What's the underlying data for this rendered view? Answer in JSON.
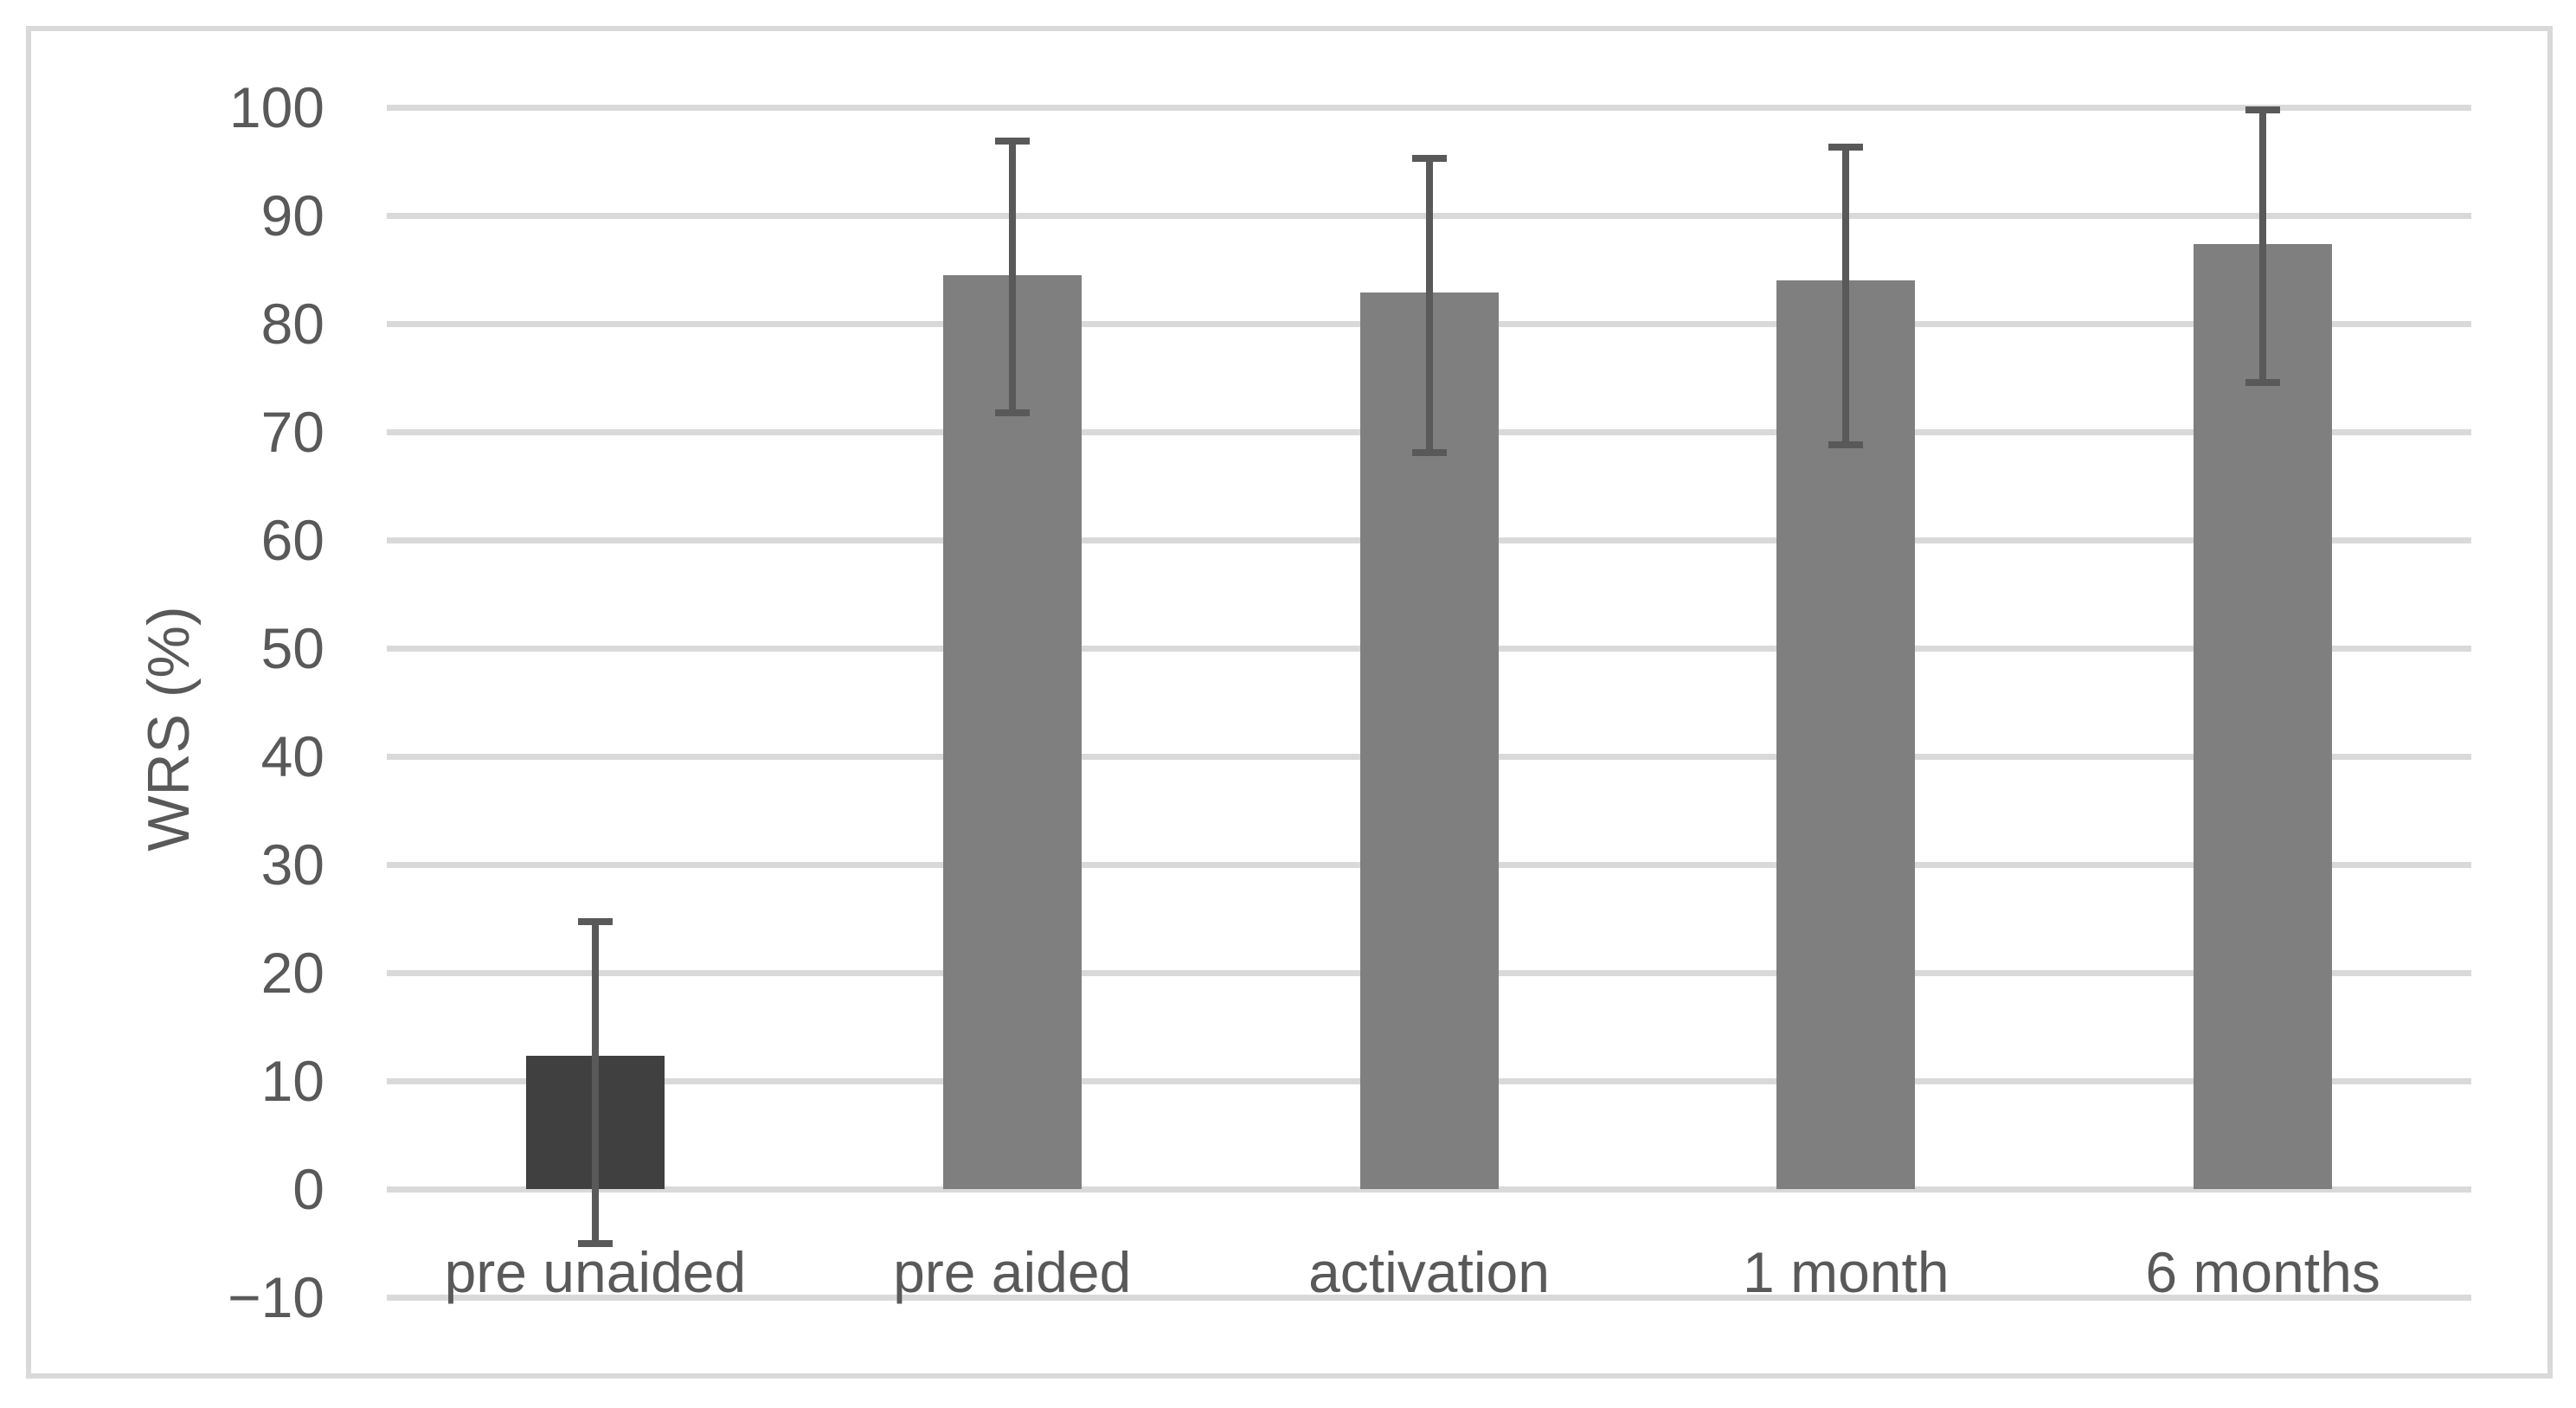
{
  "figure": {
    "background": "#ffffff"
  },
  "chart_data": {
    "type": "bar",
    "title": "",
    "xlabel": "",
    "ylabel": "WRS (%)",
    "categories": [
      "pre unaided",
      "pre aided",
      "activation",
      "1 month",
      "6 months"
    ],
    "values": [
      12.3,
      84.5,
      82.9,
      84.0,
      87.4
    ],
    "error_bars": {
      "low": [
        -5.0,
        71.8,
        68.1,
        68.8,
        74.6
      ],
      "high": [
        24.7,
        96.9,
        95.3,
        96.3,
        99.8
      ]
    },
    "ylim": [
      -10,
      100
    ],
    "ytick_values": [
      100,
      90,
      80,
      70,
      60,
      50,
      40,
      30,
      20,
      10,
      0,
      -10
    ],
    "ytick_labels": [
      "100",
      "90",
      "80",
      "70",
      "60",
      "50",
      "40",
      "30",
      "20",
      "10",
      "0",
      "−10"
    ],
    "grid": true,
    "legend": false,
    "colors": {
      "bars": [
        "#404040",
        "#7f7f7f",
        "#7f7f7f",
        "#7f7f7f",
        "#7f7f7f"
      ],
      "error_bar": "#595959",
      "gridline": "#d9d9d9",
      "text": "#595959",
      "frame_border": "#d9d9d9",
      "background": "#ffffff"
    }
  }
}
